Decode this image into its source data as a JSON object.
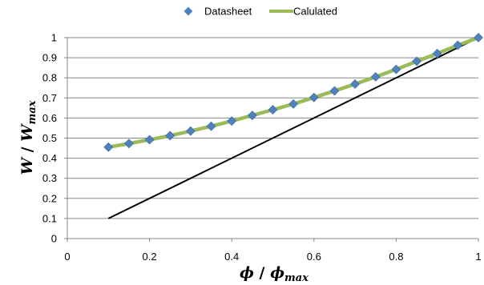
{
  "chart_data": {
    "type": "line",
    "title": "",
    "xlabel": {
      "main": "ϕ",
      "sep": " / ",
      "main2": "ϕ",
      "sub2": "max"
    },
    "ylabel": {
      "main": "W",
      "sep": " / ",
      "main2": "W",
      "sub2": "max"
    },
    "xlim": [
      0,
      1
    ],
    "ylim": [
      0,
      1
    ],
    "x_ticks": [
      "0",
      "0.2",
      "0.4",
      "0.6",
      "0.8",
      "1"
    ],
    "y_ticks": [
      "0",
      "0.1",
      "0.2",
      "0.3",
      "0.4",
      "0.5",
      "0.6",
      "0.7",
      "0.8",
      "0.9",
      "1"
    ],
    "grid": "horizontal",
    "legend_position": "top",
    "series": [
      {
        "name": "Datasheet",
        "kind": "markers",
        "marker": "diamond",
        "color": "#4f81bd",
        "x": [
          0.1,
          0.15,
          0.2,
          0.25,
          0.3,
          0.35,
          0.4,
          0.45,
          0.5,
          0.55,
          0.6,
          0.65,
          0.7,
          0.75,
          0.8,
          0.85,
          0.9,
          0.95,
          1.0
        ],
        "y": [
          0.455,
          0.473,
          0.492,
          0.512,
          0.535,
          0.559,
          0.585,
          0.613,
          0.641,
          0.67,
          0.702,
          0.735,
          0.769,
          0.805,
          0.842,
          0.882,
          0.921,
          0.962,
          1.0
        ]
      },
      {
        "name": "Calulated",
        "kind": "line",
        "color": "#9bbb59",
        "x": [
          0.1,
          0.15,
          0.2,
          0.25,
          0.3,
          0.35,
          0.4,
          0.45,
          0.5,
          0.55,
          0.6,
          0.65,
          0.7,
          0.75,
          0.8,
          0.85,
          0.9,
          0.95,
          1.0
        ],
        "y": [
          0.455,
          0.473,
          0.492,
          0.512,
          0.535,
          0.559,
          0.585,
          0.613,
          0.641,
          0.67,
          0.702,
          0.735,
          0.769,
          0.805,
          0.842,
          0.882,
          0.921,
          0.962,
          1.0
        ]
      },
      {
        "kind": "line",
        "color": "#000000",
        "in_legend": false,
        "x": [
          0.1,
          1.0
        ],
        "y": [
          0.1,
          1.0
        ]
      }
    ]
  }
}
